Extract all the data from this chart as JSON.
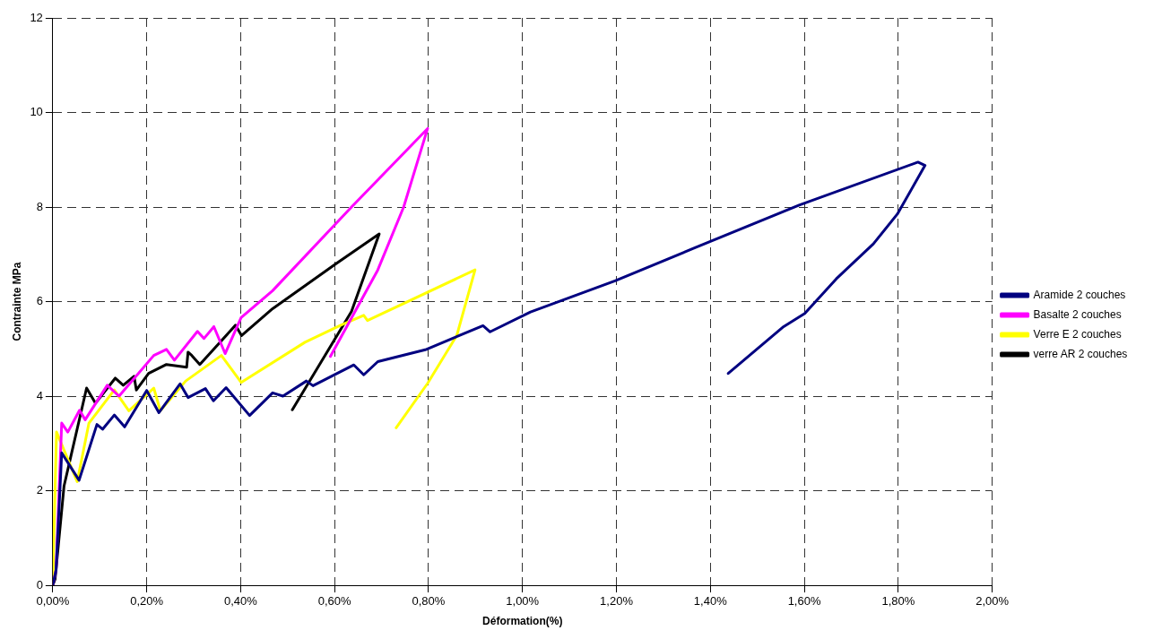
{
  "chart_data": {
    "type": "line",
    "xlabel": "Déformation(%)",
    "ylabel": "Contrainte MPa",
    "xlim": [
      0,
      2
    ],
    "xticks": [
      {
        "value": 0,
        "label": "0,00%"
      },
      {
        "value": 0.2,
        "label": "0,20%"
      },
      {
        "value": 0.4,
        "label": "0,40%"
      },
      {
        "value": 0.6,
        "label": "0,60%"
      },
      {
        "value": 0.8,
        "label": "0,80%"
      },
      {
        "value": 1,
        "label": "1,00%"
      },
      {
        "value": 1.2,
        "label": "1,20%"
      },
      {
        "value": 1.4,
        "label": "1,40%"
      },
      {
        "value": 1.6,
        "label": "1,60%"
      },
      {
        "value": 1.8,
        "label": "1,80%"
      },
      {
        "value": 2,
        "label": "2,00%"
      }
    ],
    "ylim": [
      0,
      12
    ],
    "yticks": [
      0,
      2,
      4,
      6,
      8,
      10,
      12
    ],
    "grid": true,
    "legend": "right",
    "marker": "none",
    "line_style": "solid",
    "series": [
      {
        "name": "Aramide 2 couches",
        "color": "#000080",
        "x": [
          0,
          0.007,
          0.019,
          0.056,
          0.094,
          0.106,
          0.131,
          0.153,
          0.2,
          0.226,
          0.271,
          0.288,
          0.325,
          0.342,
          0.369,
          0.419,
          0.468,
          0.49,
          0.54,
          0.554,
          0.641,
          0.662,
          0.692,
          0.793,
          0.916,
          0.931,
          1.017,
          1.197,
          1.365,
          1.589,
          1.842,
          1.857,
          1.798,
          1.747,
          1.668,
          1.601,
          1.556,
          1.438
        ],
        "values": [
          0,
          0.32,
          2.8,
          2.22,
          3.4,
          3.3,
          3.6,
          3.35,
          4.12,
          3.65,
          4.26,
          3.97,
          4.16,
          3.9,
          4.18,
          3.59,
          4.07,
          4.0,
          4.32,
          4.22,
          4.66,
          4.45,
          4.73,
          4.98,
          5.49,
          5.36,
          5.78,
          6.44,
          7.13,
          8.04,
          8.95,
          8.88,
          7.85,
          7.22,
          6.48,
          5.75,
          5.47,
          4.48
        ]
      },
      {
        "name": "Basalte 2 couches",
        "color": "#ff00ff",
        "x": [
          0,
          0.007,
          0.019,
          0.032,
          0.057,
          0.069,
          0.116,
          0.141,
          0.215,
          0.242,
          0.259,
          0.308,
          0.322,
          0.343,
          0.367,
          0.401,
          0.468,
          0.636,
          0.798,
          0.747,
          0.692,
          0.591
        ],
        "values": [
          0,
          0.32,
          3.43,
          3.24,
          3.7,
          3.5,
          4.23,
          4.0,
          4.86,
          4.99,
          4.76,
          5.37,
          5.22,
          5.47,
          4.9,
          5.66,
          6.23,
          8.0,
          9.66,
          8.0,
          6.67,
          4.84
        ]
      },
      {
        "name": "Verre E 2 couches",
        "color": "#ffff00",
        "x": [
          0,
          0.002,
          0.008,
          0.052,
          0.077,
          0.131,
          0.162,
          0.215,
          0.229,
          0.283,
          0.359,
          0.401,
          0.537,
          0.613,
          0.662,
          0.67,
          0.899,
          0.86,
          0.798,
          0.731
        ],
        "values": [
          0,
          0.9,
          3.24,
          2.19,
          3.43,
          4.13,
          3.69,
          4.17,
          3.69,
          4.32,
          4.86,
          4.29,
          5.14,
          5.5,
          5.71,
          5.6,
          6.67,
          5.28,
          4.27,
          3.33
        ]
      },
      {
        "name": "verre AR 2 couches",
        "color": "#000000",
        "x": [
          0,
          0.005,
          0.024,
          0.072,
          0.091,
          0.133,
          0.15,
          0.173,
          0.178,
          0.204,
          0.242,
          0.285,
          0.288,
          0.296,
          0.313,
          0.389,
          0.402,
          0.468,
          0.603,
          0.695,
          0.636,
          0.51
        ],
        "values": [
          0,
          0.13,
          2.1,
          4.17,
          3.85,
          4.38,
          4.23,
          4.42,
          4.13,
          4.48,
          4.67,
          4.61,
          4.93,
          4.86,
          4.67,
          5.5,
          5.28,
          5.85,
          6.8,
          7.43,
          5.79,
          3.71
        ]
      }
    ]
  }
}
